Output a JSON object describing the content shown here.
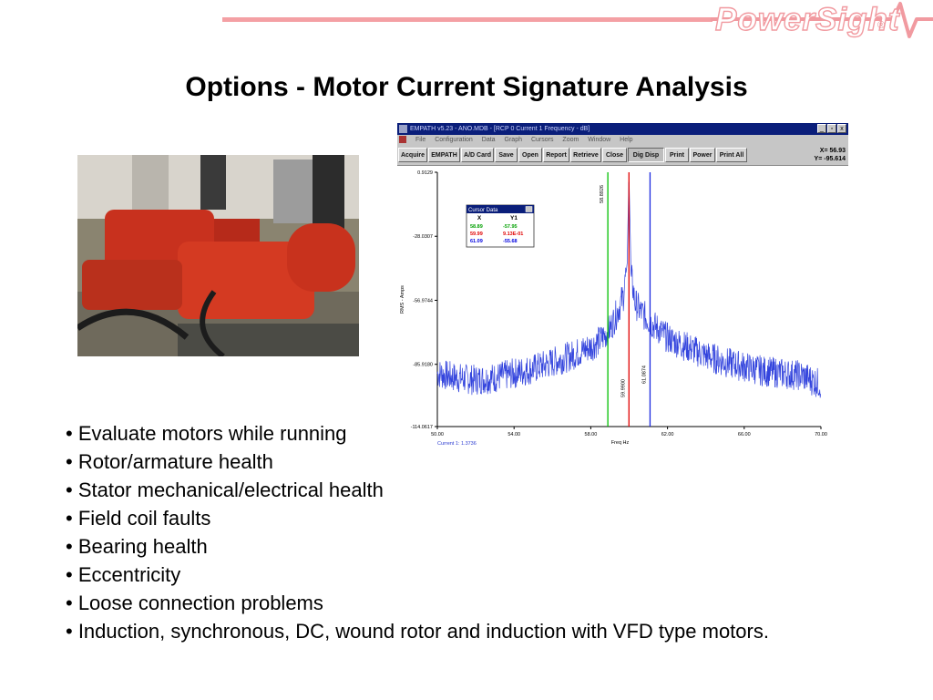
{
  "brand": {
    "name": "PowerSight",
    "reg": "®",
    "accent": "#f4a0a4"
  },
  "title": "Options - Motor Current Signature Analysis",
  "photo": {
    "subject": "red-motor-pumps"
  },
  "empath": {
    "window_title": "EMPATH v5.23 - ANO.MDB - [RCP 0 Current 1 Frequency - dB]",
    "window_buttons": [
      "_",
      "▫",
      "x"
    ],
    "menu": [
      "File",
      "Configuration",
      "Data",
      "Graph",
      "Cursors",
      "Zoom",
      "Window",
      "Help"
    ],
    "toolbar": [
      "Acquire",
      "EMPATH",
      "A/D Card",
      "Save",
      "Open",
      "Report",
      "Retrieve",
      "Close",
      "Dig Disp",
      "Print",
      "Power",
      "Print All"
    ],
    "readout": {
      "x": "X= 56.93",
      "y": "Y= -95.614"
    },
    "cursor_box": {
      "title": "Cursor Data",
      "headers": [
        "X",
        "Y1"
      ],
      "rows": [
        {
          "x": "58.89",
          "y": "-57.95",
          "color": "#00a000"
        },
        {
          "x": "59.99",
          "y": "9.13E-01",
          "color": "#e00000"
        },
        {
          "x": "61.09",
          "y": "-55.68",
          "color": "#0000e0"
        }
      ]
    },
    "status": "Current 1: 1.3736"
  },
  "chart_data": {
    "type": "line",
    "xlabel": "Freq Hz",
    "ylabel": "RMS - Amps",
    "xlim": [
      50,
      70
    ],
    "ylim": [
      -114.0617,
      0.9129
    ],
    "x_ticks": [
      "50.00",
      "54.00",
      "58.00",
      "62.00",
      "66.00",
      "70.00"
    ],
    "y_ticks": [
      "0.9129",
      "-28.0307",
      "-56.9744",
      "-85.9180",
      "-114.0617"
    ],
    "cursors": [
      {
        "x": 58.89,
        "label": "58.8926",
        "color": "#00c000"
      },
      {
        "x": 59.99,
        "label": "59.9900",
        "color": "#e00000"
      },
      {
        "x": 61.09,
        "label": "61.0874",
        "color": "#1a28e0"
      }
    ],
    "series": [
      {
        "color": "#3344dd",
        "x": [
          50.0,
          51.0,
          52.0,
          53.0,
          54.0,
          55.0,
          56.0,
          57.0,
          58.0,
          58.5,
          59.0,
          59.4,
          59.7,
          59.9,
          59.99,
          60.1,
          60.3,
          60.6,
          61.0,
          61.5,
          62.0,
          63.0,
          64.0,
          65.0,
          66.0,
          67.0,
          68.0,
          69.0,
          70.0
        ],
        "y": [
          -90,
          -92,
          -93,
          -92,
          -90,
          -88,
          -85,
          -82,
          -78,
          -75,
          -70,
          -62,
          -55,
          -40,
          0.9,
          -45,
          -58,
          -62,
          -66,
          -70,
          -74,
          -78,
          -82,
          -85,
          -87,
          -89,
          -90,
          -91,
          -95
        ]
      }
    ]
  },
  "bullets": [
    "• Evaluate motors while running",
    "• Rotor/armature health",
    "• Stator mechanical/electrical health",
    "• Field coil faults",
    "• Bearing health",
    "• Eccentricity",
    "• Loose connection problems",
    "• Induction, synchronous, DC, wound rotor and induction with VFD type motors."
  ]
}
